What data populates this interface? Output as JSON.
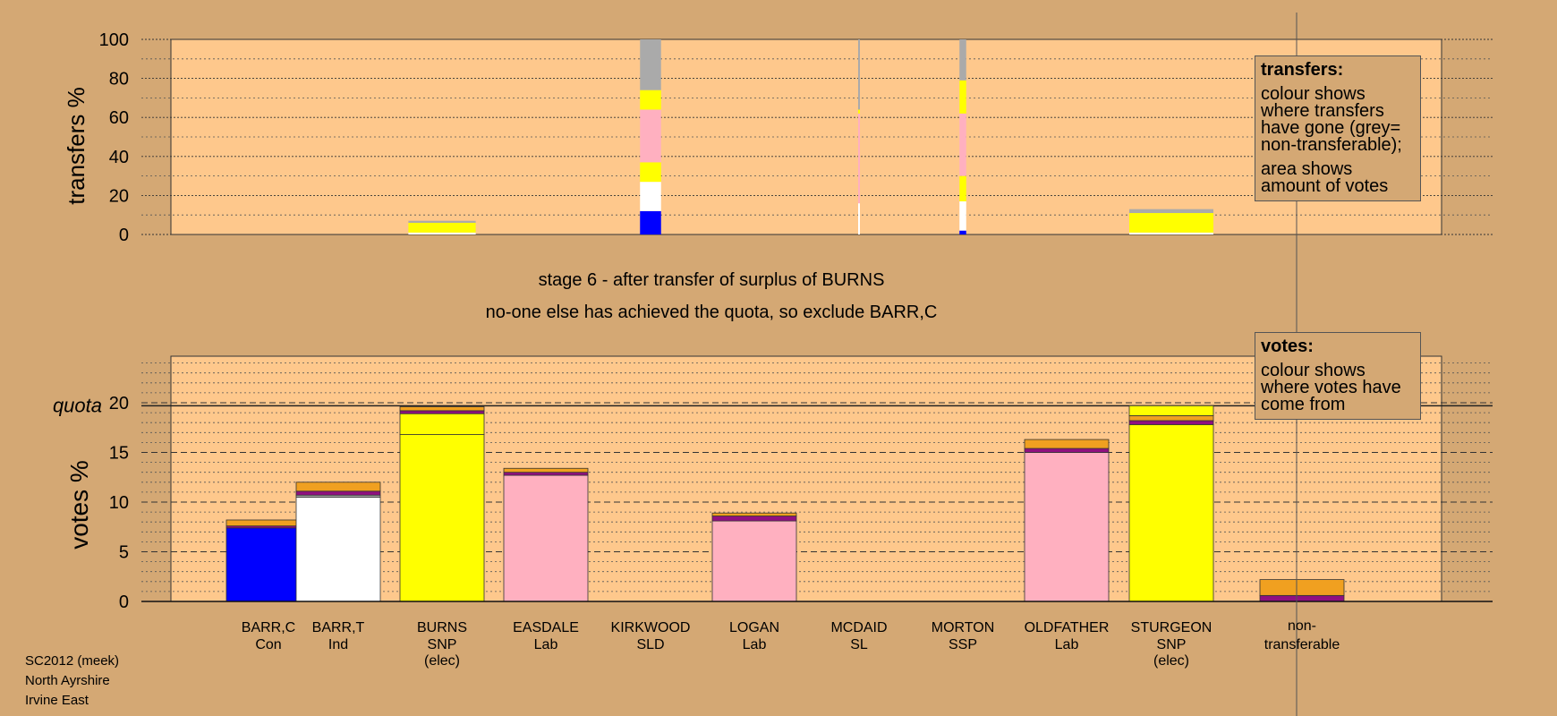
{
  "colors": {
    "page_bg": "#d4a874",
    "plot_bg": "#fec88c",
    "Con": "#0000ff",
    "Ind": "#ffffff",
    "SNP": "#ffff00",
    "Lab": "#ffb0c0",
    "SL": "#ffb0c0",
    "SSP": "#ffb0c0",
    "SLD": "#f0a020",
    "other": "#901080",
    "nontransferable": "#aaaaaa"
  },
  "stage": {
    "line1": "stage 6 - after transfer of surplus of BURNS",
    "line2": "no-one else has achieved the quota, so exclude BARR,C"
  },
  "legend_transfers": {
    "title": "transfers:",
    "p1": "colour shows where transfers have gone (grey= non-transferable);",
    "p2": "area shows amount of votes"
  },
  "legend_votes": {
    "title": "votes:",
    "p1": "colour shows where votes have come from"
  },
  "footer": {
    "line1": "SC2012 (meek)",
    "line2": "North Ayrshire",
    "line3": "Irvine East"
  },
  "chart_data": [
    {
      "type": "bar",
      "title": "transfers",
      "ylabel": "transfers %",
      "ylim": [
        0,
        100
      ],
      "yticks": [
        "0",
        "20",
        "40",
        "60",
        "80",
        "100"
      ],
      "categories": [
        "BARR,C",
        "BARR,T",
        "BURNS",
        "EASDALE",
        "KIRKWOOD",
        "LOGAN",
        "MCDAID",
        "MORTON",
        "OLDFATHER",
        "STURGEON"
      ],
      "bars": [
        {
          "category": "BURNS",
          "width_pct": 0.8,
          "segments": [
            {
              "party": "Ind",
              "value": 1
            },
            {
              "party": "SNP",
              "value": 5
            },
            {
              "party": "nontransferable",
              "value": 1
            }
          ]
        },
        {
          "category": "KIRKWOOD",
          "width_pct": 0.25,
          "segments": [
            {
              "party": "Con",
              "value": 12
            },
            {
              "party": "Ind",
              "value": 15
            },
            {
              "party": "SNP",
              "value": 10
            },
            {
              "party": "Lab",
              "value": 27
            },
            {
              "party": "SNP",
              "value": 10
            },
            {
              "party": "nontransferable",
              "value": 26
            }
          ]
        },
        {
          "category": "MCDAID",
          "width_pct": 0.02,
          "segments": [
            {
              "party": "Ind",
              "value": 16
            },
            {
              "party": "Lab",
              "value": 46
            },
            {
              "party": "SNP",
              "value": 2
            },
            {
              "party": "nontransferable",
              "value": 36
            }
          ]
        },
        {
          "category": "MORTON",
          "width_pct": 0.08,
          "segments": [
            {
              "party": "Con",
              "value": 2
            },
            {
              "party": "Ind",
              "value": 15
            },
            {
              "party": "SNP",
              "value": 13
            },
            {
              "party": "Lab",
              "value": 32
            },
            {
              "party": "SNP",
              "value": 17
            },
            {
              "party": "nontransferable",
              "value": 21
            }
          ]
        },
        {
          "category": "STURGEON",
          "width_pct": 1.0,
          "segments": [
            {
              "party": "Ind",
              "value": 1
            },
            {
              "party": "SNP",
              "value": 10
            },
            {
              "party": "nontransferable",
              "value": 2
            }
          ]
        }
      ]
    },
    {
      "type": "bar",
      "title": "votes",
      "ylabel": "votes %",
      "ylim": [
        0,
        25
      ],
      "yticks": [
        "0",
        "5",
        "10",
        "15",
        "20"
      ],
      "quota_label": "quota",
      "quota": 19.7,
      "categories": [
        {
          "name": "BARR,C",
          "party": "Con",
          "elec": ""
        },
        {
          "name": "BARR,T",
          "party": "Ind",
          "elec": ""
        },
        {
          "name": "BURNS",
          "party": "SNP",
          "elec": "(elec)"
        },
        {
          "name": "EASDALE",
          "party": "Lab",
          "elec": ""
        },
        {
          "name": "KIRKWOOD",
          "party": "SLD",
          "elec": ""
        },
        {
          "name": "LOGAN",
          "party": "Lab",
          "elec": ""
        },
        {
          "name": "MCDAID",
          "party": "SL",
          "elec": ""
        },
        {
          "name": "MORTON",
          "party": "SSP",
          "elec": ""
        },
        {
          "name": "OLDFATHER",
          "party": "Lab",
          "elec": ""
        },
        {
          "name": "STURGEON",
          "party": "SNP",
          "elec": "(elec)"
        }
      ],
      "nontransferable_label": "non-transferable",
      "bars": [
        {
          "category": "BARR,C",
          "segments": [
            {
              "party": "Con",
              "value": 7.4
            },
            {
              "party": "other",
              "value": 0.2
            },
            {
              "party": "SLD",
              "value": 0.6
            }
          ]
        },
        {
          "category": "BARR,T",
          "segments": [
            {
              "party": "Ind",
              "value": 10.5
            },
            {
              "party": "nontransferable",
              "value": 0.2
            },
            {
              "party": "other",
              "value": 0.4
            },
            {
              "party": "SLD",
              "value": 0.9
            }
          ]
        },
        {
          "category": "BURNS",
          "segments": [
            {
              "party": "SNP",
              "value": 16.8
            },
            {
              "party": "SNP",
              "value": 2.1
            },
            {
              "party": "other",
              "value": 0.3
            },
            {
              "party": "SLD",
              "value": 0.4
            }
          ]
        },
        {
          "category": "EASDALE",
          "segments": [
            {
              "party": "Lab",
              "value": 12.7
            },
            {
              "party": "other",
              "value": 0.3
            },
            {
              "party": "SLD",
              "value": 0.4
            }
          ]
        },
        {
          "category": "KIRKWOOD",
          "segments": []
        },
        {
          "category": "LOGAN",
          "segments": [
            {
              "party": "Lab",
              "value": 8.1
            },
            {
              "party": "other",
              "value": 0.5
            },
            {
              "party": "SLD",
              "value": 0.3
            }
          ]
        },
        {
          "category": "MCDAID",
          "segments": []
        },
        {
          "category": "MORTON",
          "segments": []
        },
        {
          "category": "OLDFATHER",
          "segments": [
            {
              "party": "Lab",
              "value": 15.0
            },
            {
              "party": "other",
              "value": 0.4
            },
            {
              "party": "SLD",
              "value": 0.9
            }
          ]
        },
        {
          "category": "STURGEON",
          "segments": [
            {
              "party": "SNP",
              "value": 17.8
            },
            {
              "party": "other",
              "value": 0.4
            },
            {
              "party": "SLD",
              "value": 0.5
            },
            {
              "party": "SNP",
              "value": 1.0
            }
          ]
        }
      ],
      "nontransferable_bar": {
        "segments": [
          {
            "party": "other",
            "value": 0.6
          },
          {
            "party": "SLD",
            "value": 1.6
          }
        ]
      }
    }
  ]
}
